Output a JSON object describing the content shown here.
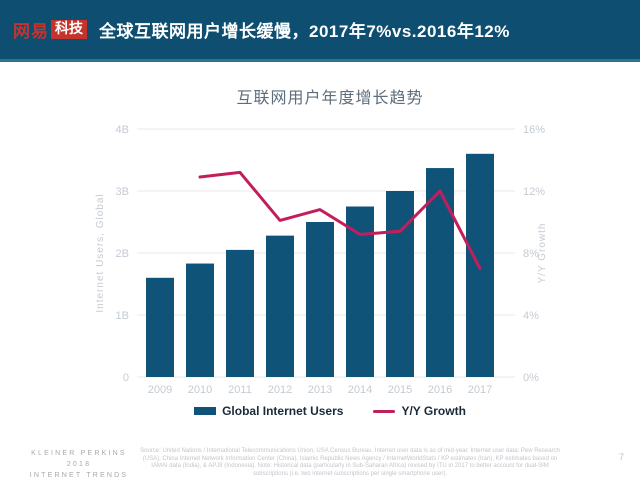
{
  "header": {
    "logo_brand": "网易",
    "logo_sub": "科技",
    "title": "全球互联网用户增长缓慢，2017年7%vs.2016年12%"
  },
  "chart_data": {
    "type": "bar",
    "title": "互联网用户年度增长趋势",
    "categories": [
      "2009",
      "2010",
      "2011",
      "2012",
      "2013",
      "2014",
      "2015",
      "2016",
      "2017"
    ],
    "series": [
      {
        "name": "Global Internet Users",
        "type": "bar",
        "axis": "left",
        "color": "#0F5478",
        "values": [
          1.6,
          1.83,
          2.05,
          2.28,
          2.5,
          2.75,
          3.0,
          3.37,
          3.6
        ]
      },
      {
        "name": "Y/Y Growth",
        "type": "line",
        "axis": "right",
        "color": "#C31E5C",
        "values": [
          null,
          12.9,
          13.2,
          10.1,
          10.8,
          9.2,
          9.4,
          12.0,
          7.0
        ]
      }
    ],
    "left_axis": {
      "label": "Internet Users, Global",
      "ticks": [
        "0",
        "1B",
        "2B",
        "3B",
        "4B"
      ],
      "min": 0,
      "max": 4
    },
    "right_axis": {
      "label": "Y/Y Growth",
      "ticks": [
        "0%",
        "4%",
        "8%",
        "12%",
        "16%"
      ],
      "min": 0,
      "max": 16
    },
    "legend_position": "bottom",
    "grid": true
  },
  "footer": {
    "brand_lines": [
      "KLEINER PERKINS",
      "2018",
      "INTERNET TRENDS"
    ],
    "source_note": "Source: United Nations / International Telecommunications Union, USA Census Bureau. Internet user data is as of mid-year. Internet user data: Pew Research (USA), China Internet Network Information Center (China), Islamic Republic News Agency / InternetWorldStats / KP estimates (Iran), KP estimates based on IAMAI data (India), & APJII (Indonesia).  Note: Historical data (particularly in Sub-Saharan Africa) revised by ITU in 2017 to better account for dual-SIM subscriptions (i.e. two internet subscriptions per single smartphone user).",
    "page_number": "7"
  },
  "colors": {
    "banner": "#0D4E71",
    "banner_edge": "#2E7290",
    "logo_red": "#C5342C",
    "bar_blue": "#0F5478",
    "line_crimson": "#C31E5C",
    "axis_gray": "#C5CBD3",
    "title_gray": "#5D6D7C",
    "legend_text": "#1B2A38",
    "footer_gray": "#A4A8AD",
    "footnote_gray": "#C3C5CA"
  }
}
